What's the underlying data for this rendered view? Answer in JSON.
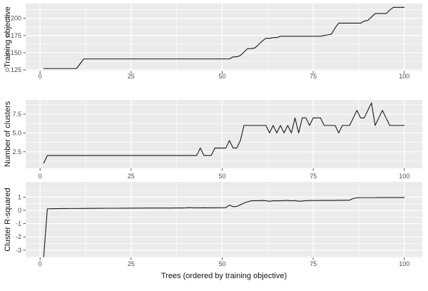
{
  "figure": {
    "background": "#FFFFFF",
    "panel_background": "#EBEBEB",
    "gridline_color": "#FFFFFF",
    "line_color": "#1A1A1A",
    "tick_mark_color": "#333333",
    "tick_label_color": "#4D4D4D",
    "axis_title_color": "#111111",
    "x_axis_title": "Trees (ordered by training objective)"
  },
  "chart_data": [
    {
      "type": "line",
      "title": "",
      "ylabel": "Training objective",
      "xlabel": "",
      "x_range": {
        "from": 1,
        "to": 100,
        "step": 1
      },
      "xlim": [
        -3.95,
        104.95
      ],
      "ylim": [
        0.1235,
        0.2215
      ],
      "xticks": {
        "values": [
          0,
          25,
          50,
          75,
          100
        ],
        "labels": [
          "0",
          "25",
          "50",
          "75",
          "100"
        ]
      },
      "yticks": {
        "values": [
          0.125,
          0.15,
          0.175,
          0.2
        ],
        "labels": [
          "0.125",
          "0.150",
          "0.175",
          "0.200"
        ]
      },
      "grid": "major+minor",
      "legend": "none",
      "values": [
        0.127,
        0.127,
        0.127,
        0.127,
        0.127,
        0.127,
        0.127,
        0.127,
        0.127,
        0.127,
        0.134,
        0.141,
        0.141,
        0.141,
        0.141,
        0.141,
        0.141,
        0.141,
        0.141,
        0.141,
        0.141,
        0.141,
        0.141,
        0.141,
        0.141,
        0.141,
        0.141,
        0.141,
        0.141,
        0.141,
        0.141,
        0.141,
        0.141,
        0.141,
        0.141,
        0.141,
        0.141,
        0.141,
        0.141,
        0.141,
        0.141,
        0.141,
        0.141,
        0.141,
        0.141,
        0.141,
        0.141,
        0.141,
        0.141,
        0.141,
        0.141,
        0.141,
        0.144,
        0.144,
        0.146,
        0.151,
        0.156,
        0.156,
        0.157,
        0.162,
        0.167,
        0.171,
        0.171,
        0.172,
        0.172,
        0.174,
        0.174,
        0.174,
        0.174,
        0.174,
        0.174,
        0.174,
        0.174,
        0.174,
        0.174,
        0.174,
        0.174,
        0.175,
        0.176,
        0.177,
        0.186,
        0.193,
        0.193,
        0.193,
        0.193,
        0.193,
        0.193,
        0.193,
        0.196,
        0.197,
        0.202,
        0.207,
        0.207,
        0.207,
        0.207,
        0.212,
        0.216,
        0.216,
        0.216,
        0.216
      ]
    },
    {
      "type": "line",
      "title": "",
      "ylabel": "Number of clusters",
      "xlabel": "",
      "x_range": {
        "from": 1,
        "to": 100,
        "step": 1
      },
      "xlim": [
        -3.95,
        104.95
      ],
      "ylim": [
        0.3,
        9.4
      ],
      "xticks": {
        "values": [
          0,
          25,
          50,
          75,
          100
        ],
        "labels": [
          "0",
          "25",
          "50",
          "75",
          "100"
        ]
      },
      "yticks": {
        "values": [
          2.5,
          5.0,
          7.5
        ],
        "labels": [
          "2.5",
          "5.0",
          "7.5"
        ]
      },
      "grid": "major+minor",
      "legend": "none",
      "values": [
        1,
        2,
        2,
        2,
        2,
        2,
        2,
        2,
        2,
        2,
        2,
        2,
        2,
        2,
        2,
        2,
        2,
        2,
        2,
        2,
        2,
        2,
        2,
        2,
        2,
        2,
        2,
        2,
        2,
        2,
        2,
        2,
        2,
        2,
        2,
        2,
        2,
        2,
        2,
        2,
        2,
        2,
        2,
        3,
        2,
        2,
        2,
        3,
        3,
        3,
        3,
        4,
        3,
        3,
        4,
        6,
        6,
        6,
        6,
        6,
        6,
        6,
        5,
        6,
        5,
        6,
        5,
        6,
        5,
        7,
        5,
        7,
        7,
        6,
        7,
        7,
        7,
        6,
        6,
        6,
        6,
        5,
        6,
        6,
        6,
        7,
        8,
        7,
        7,
        8,
        9,
        6,
        7,
        8,
        7,
        6,
        6,
        6,
        6,
        6
      ]
    },
    {
      "type": "line",
      "title": "",
      "ylabel": "Cluster R-squared",
      "xlabel": "Trees (ordered by training objective)",
      "x_range": {
        "from": 1,
        "to": 100,
        "step": 1
      },
      "xlim": [
        -3.95,
        104.95
      ],
      "ylim": [
        -3.55,
        2.15
      ],
      "xticks": {
        "values": [
          0,
          25,
          50,
          75,
          100
        ],
        "labels": [
          "0",
          "25",
          "50",
          "75",
          "100"
        ]
      },
      "yticks": {
        "values": [
          -3,
          -2,
          -1,
          0,
          1
        ],
        "labels": [
          "-3",
          "-2",
          "-1",
          "0",
          "1"
        ]
      },
      "grid": "major+minor",
      "legend": "none",
      "values": [
        -3.5,
        0.12,
        0.125,
        0.13,
        0.13,
        0.135,
        0.135,
        0.14,
        0.14,
        0.14,
        0.145,
        0.145,
        0.15,
        0.15,
        0.15,
        0.155,
        0.155,
        0.16,
        0.16,
        0.16,
        0.16,
        0.165,
        0.165,
        0.165,
        0.17,
        0.17,
        0.17,
        0.17,
        0.175,
        0.175,
        0.175,
        0.18,
        0.18,
        0.18,
        0.18,
        0.18,
        0.185,
        0.185,
        0.185,
        0.19,
        0.21,
        0.195,
        0.19,
        0.19,
        0.195,
        0.19,
        0.19,
        0.195,
        0.195,
        0.2,
        0.21,
        0.4,
        0.28,
        0.3,
        0.42,
        0.55,
        0.65,
        0.72,
        0.73,
        0.73,
        0.74,
        0.73,
        0.69,
        0.72,
        0.73,
        0.72,
        0.74,
        0.74,
        0.72,
        0.74,
        0.69,
        0.71,
        0.73,
        0.74,
        0.74,
        0.74,
        0.75,
        0.75,
        0.75,
        0.75,
        0.75,
        0.76,
        0.76,
        0.76,
        0.77,
        0.9,
        0.95,
        0.96,
        0.96,
        0.96,
        0.96,
        0.96,
        0.97,
        0.97,
        0.97,
        0.97,
        0.97,
        0.97,
        0.97,
        0.97
      ]
    }
  ]
}
